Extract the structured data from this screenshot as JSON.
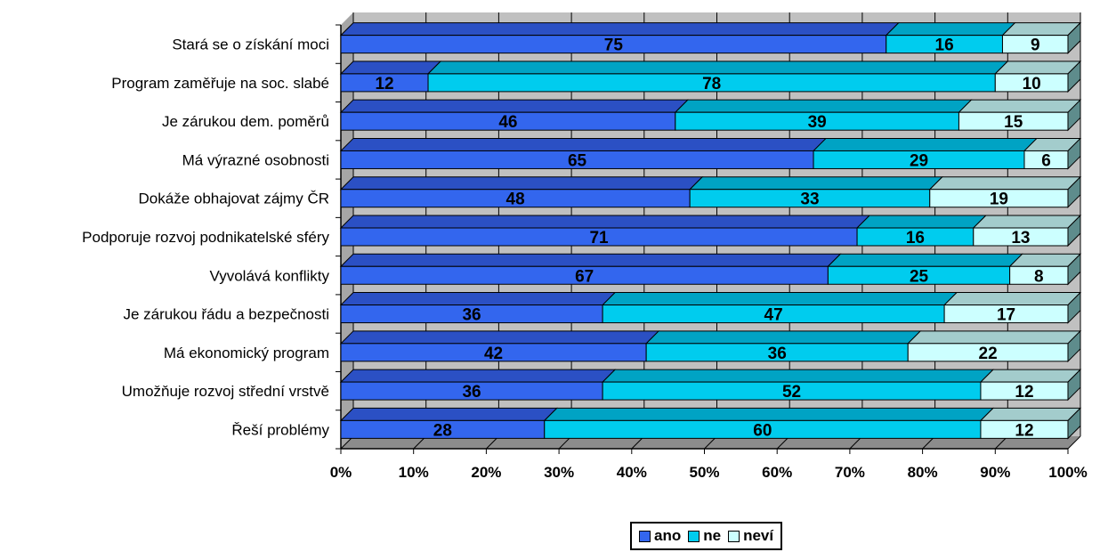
{
  "chart_data": {
    "type": "bar",
    "orientation": "horizontal",
    "stacked": "percent",
    "categories": [
      "Stará se o získání moci",
      "Program zaměřuje na soc. slabé",
      "Je zárukou dem. poměrů",
      "Má výrazné osobnosti",
      "Dokáže obhajovat zájmy ČR",
      "Podporuje rozvoj podnikatelské sféry",
      "Vyvolává konflikty",
      "Je zárukou řádu a bezpečnosti",
      "Má ekonomický program",
      "Umožňuje rozvoj střední vrstvě",
      "Řeší problémy"
    ],
    "series": [
      {
        "name": "ano",
        "color": "#3366ee",
        "top_color": "#2b50c4",
        "values": [
          75,
          12,
          46,
          65,
          48,
          71,
          67,
          36,
          42,
          36,
          28
        ]
      },
      {
        "name": "ne",
        "color": "#00ccee",
        "top_color": "#00a3c4",
        "values": [
          16,
          78,
          39,
          29,
          33,
          16,
          25,
          47,
          36,
          52,
          60
        ]
      },
      {
        "name": "neví",
        "color": "#ccffff",
        "top_color": "#a3cccc",
        "values": [
          9,
          10,
          15,
          6,
          19,
          13,
          8,
          17,
          22,
          12,
          12
        ]
      }
    ],
    "xlim": [
      0,
      100
    ],
    "x_ticks": [
      "0%",
      "10%",
      "20%",
      "30%",
      "40%",
      "50%",
      "60%",
      "70%",
      "80%",
      "90%",
      "100%"
    ],
    "grid": true,
    "legend_position": "bottom",
    "title": "",
    "xlabel": "",
    "ylabel": ""
  }
}
